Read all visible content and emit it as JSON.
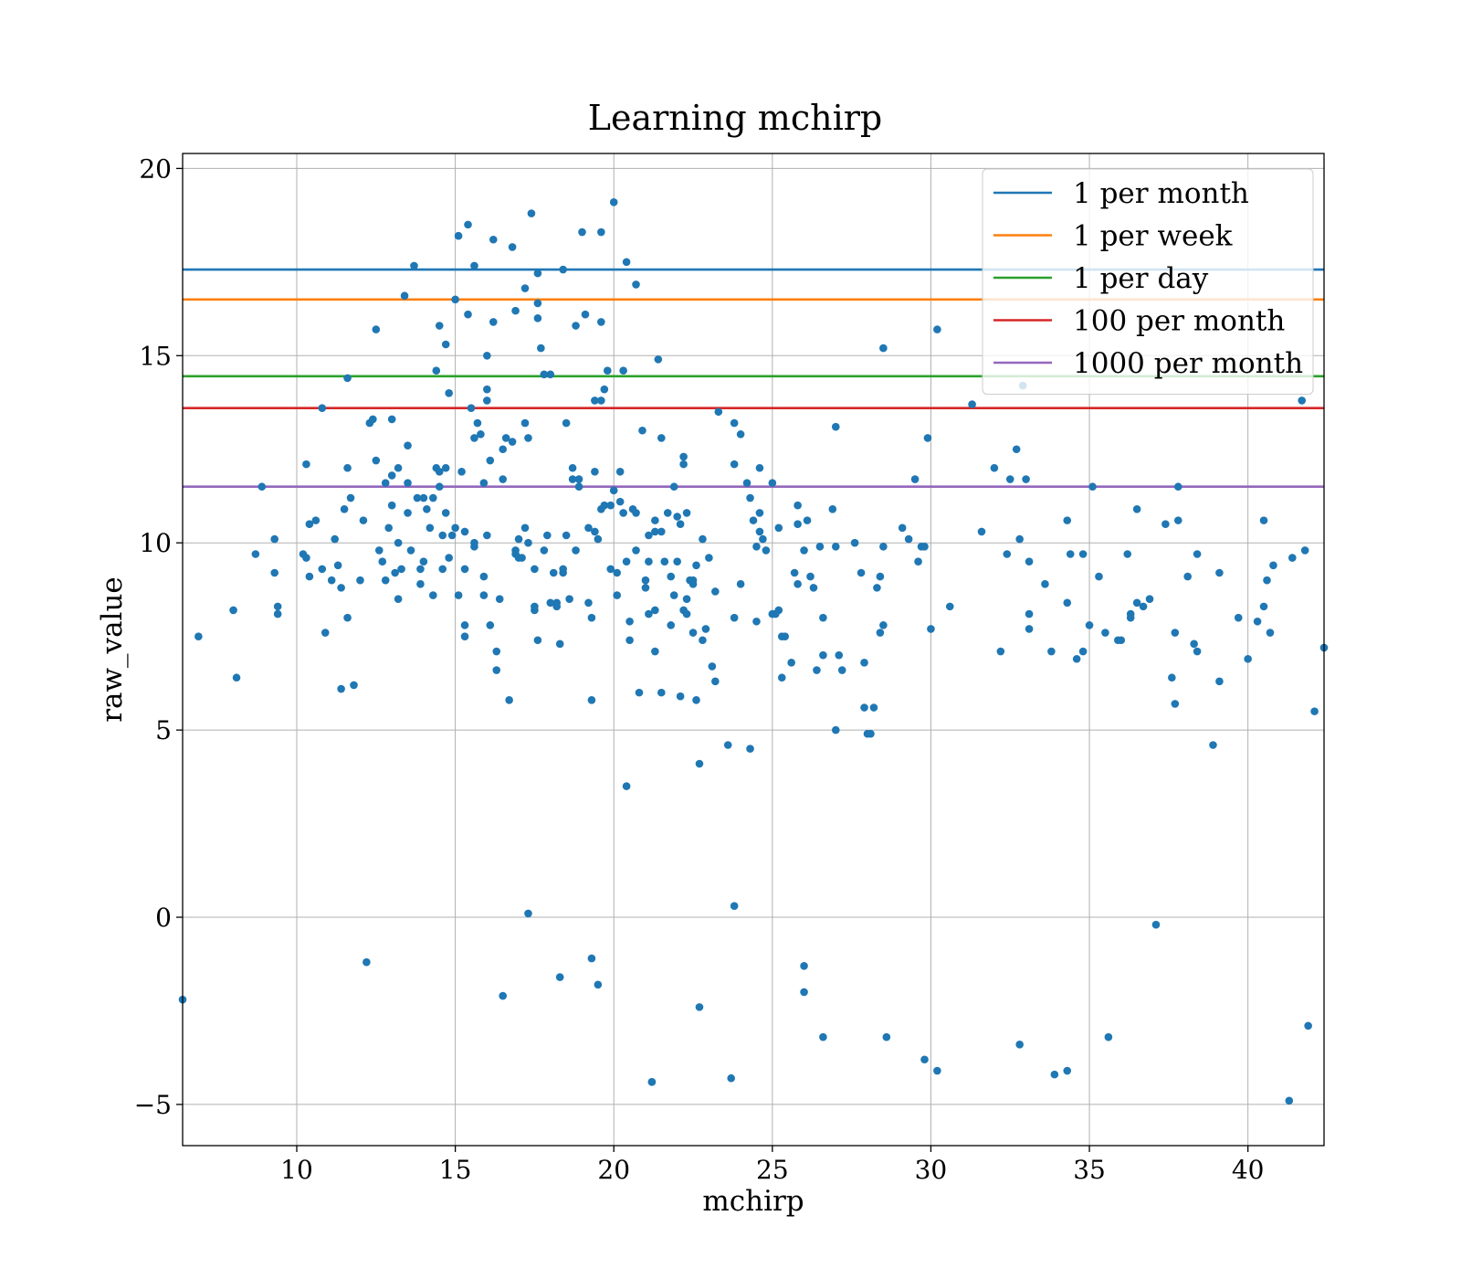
{
  "chart_data": {
    "type": "scatter",
    "title": "Learning mchirp",
    "xlabel": "mchirp",
    "ylabel": "raw_value",
    "xlim": [
      6.4,
      42.4
    ],
    "ylim": [
      -6.1,
      20.4
    ],
    "xticks": [
      10,
      15,
      20,
      25,
      30,
      35,
      40
    ],
    "yticks": [
      -5,
      0,
      5,
      10,
      15,
      20
    ],
    "xtick_labels": [
      "10",
      "15",
      "20",
      "25",
      "30",
      "35",
      "40"
    ],
    "ytick_labels": [
      "−5",
      "0",
      "5",
      "10",
      "15",
      "20"
    ],
    "grid": true,
    "legend_position": "top-right",
    "point_color": "#1f77b4",
    "hlines": [
      {
        "name": "1 per month",
        "y": 17.3,
        "color": "#1f77b4"
      },
      {
        "name": "1 per week",
        "y": 16.5,
        "color": "#ff7f0e"
      },
      {
        "name": "1 per day",
        "y": 14.45,
        "color": "#2ca02c"
      },
      {
        "name": "100 per month",
        "y": 13.6,
        "color": "#d62728"
      },
      {
        "name": "1000 per month",
        "y": 11.5,
        "color": "#9467bd"
      }
    ],
    "points": [
      [
        6.4,
        -2.2
      ],
      [
        6.9,
        7.5
      ],
      [
        8.0,
        8.2
      ],
      [
        8.1,
        6.4
      ],
      [
        8.7,
        9.7
      ],
      [
        8.9,
        11.5
      ],
      [
        9.3,
        10.1
      ],
      [
        9.3,
        9.2
      ],
      [
        9.4,
        8.1
      ],
      [
        9.4,
        8.3
      ],
      [
        10.2,
        9.7
      ],
      [
        10.3,
        9.6
      ],
      [
        10.3,
        12.1
      ],
      [
        10.4,
        10.5
      ],
      [
        10.4,
        9.1
      ],
      [
        10.6,
        10.6
      ],
      [
        10.8,
        13.6
      ],
      [
        10.8,
        9.3
      ],
      [
        10.9,
        7.6
      ],
      [
        11.1,
        9.0
      ],
      [
        11.2,
        10.1
      ],
      [
        11.3,
        9.4
      ],
      [
        11.4,
        8.8
      ],
      [
        11.4,
        6.1
      ],
      [
        11.5,
        10.9
      ],
      [
        11.6,
        12.0
      ],
      [
        11.6,
        8.0
      ],
      [
        11.6,
        14.4
      ],
      [
        11.7,
        11.2
      ],
      [
        11.8,
        6.2
      ],
      [
        12.0,
        9.0
      ],
      [
        12.1,
        10.6
      ],
      [
        12.2,
        -1.2
      ],
      [
        12.3,
        13.2
      ],
      [
        12.4,
        13.3
      ],
      [
        12.5,
        15.7
      ],
      [
        12.5,
        12.2
      ],
      [
        12.6,
        9.8
      ],
      [
        12.7,
        9.5
      ],
      [
        12.8,
        11.6
      ],
      [
        12.8,
        9.0
      ],
      [
        12.9,
        10.4
      ],
      [
        13.0,
        11.8
      ],
      [
        13.0,
        11.0
      ],
      [
        13.0,
        13.3
      ],
      [
        13.1,
        9.2
      ],
      [
        13.2,
        12.0
      ],
      [
        13.2,
        10.0
      ],
      [
        13.2,
        8.5
      ],
      [
        13.3,
        9.3
      ],
      [
        13.4,
        16.6
      ],
      [
        13.5,
        12.6
      ],
      [
        13.5,
        11.6
      ],
      [
        13.5,
        10.8
      ],
      [
        13.6,
        9.8
      ],
      [
        13.7,
        17.4
      ],
      [
        13.8,
        11.2
      ],
      [
        13.9,
        9.3
      ],
      [
        13.9,
        8.9
      ],
      [
        14.0,
        11.2
      ],
      [
        14.0,
        9.5
      ],
      [
        14.1,
        10.9
      ],
      [
        14.2,
        10.4
      ],
      [
        14.3,
        11.2
      ],
      [
        14.3,
        8.6
      ],
      [
        14.4,
        14.6
      ],
      [
        14.4,
        12.0
      ],
      [
        14.5,
        15.8
      ],
      [
        14.5,
        11.9
      ],
      [
        14.5,
        11.5
      ],
      [
        14.6,
        10.2
      ],
      [
        14.6,
        9.3
      ],
      [
        14.7,
        12.0
      ],
      [
        14.7,
        10.8
      ],
      [
        14.7,
        15.3
      ],
      [
        14.8,
        14.0
      ],
      [
        14.8,
        9.6
      ],
      [
        14.9,
        10.2
      ],
      [
        15.0,
        16.5
      ],
      [
        15.0,
        10.4
      ],
      [
        15.1,
        18.2
      ],
      [
        15.1,
        8.6
      ],
      [
        15.2,
        11.9
      ],
      [
        15.3,
        10.3
      ],
      [
        15.3,
        9.3
      ],
      [
        15.3,
        7.8
      ],
      [
        15.3,
        7.5
      ],
      [
        15.4,
        18.5
      ],
      [
        15.4,
        16.1
      ],
      [
        15.5,
        13.6
      ],
      [
        15.6,
        17.4
      ],
      [
        15.6,
        9.9
      ],
      [
        15.6,
        10.0
      ],
      [
        15.6,
        12.8
      ],
      [
        15.7,
        13.2
      ],
      [
        15.8,
        12.9
      ],
      [
        15.9,
        11.6
      ],
      [
        15.9,
        9.1
      ],
      [
        15.9,
        8.6
      ],
      [
        16.0,
        10.2
      ],
      [
        16.0,
        13.8
      ],
      [
        16.0,
        14.1
      ],
      [
        16.0,
        15.0
      ],
      [
        16.1,
        12.2
      ],
      [
        16.1,
        7.8
      ],
      [
        16.2,
        15.9
      ],
      [
        16.2,
        18.1
      ],
      [
        16.3,
        7.1
      ],
      [
        16.3,
        6.6
      ],
      [
        16.4,
        8.5
      ],
      [
        16.5,
        11.7
      ],
      [
        16.5,
        12.5
      ],
      [
        16.5,
        -2.1
      ],
      [
        16.6,
        12.8
      ],
      [
        16.7,
        5.8
      ],
      [
        16.8,
        12.7
      ],
      [
        16.8,
        17.9
      ],
      [
        16.9,
        16.2
      ],
      [
        16.9,
        9.8
      ],
      [
        16.9,
        9.7
      ],
      [
        17.0,
        9.6
      ],
      [
        17.0,
        10.1
      ],
      [
        17.1,
        9.6
      ],
      [
        17.2,
        16.8
      ],
      [
        17.2,
        13.2
      ],
      [
        17.2,
        10.4
      ],
      [
        17.3,
        12.8
      ],
      [
        17.3,
        10.0
      ],
      [
        17.3,
        0.1
      ],
      [
        17.4,
        18.8
      ],
      [
        17.5,
        9.3
      ],
      [
        17.5,
        8.3
      ],
      [
        17.5,
        8.2
      ],
      [
        17.6,
        17.2
      ],
      [
        17.6,
        16.0
      ],
      [
        17.6,
        16.4
      ],
      [
        17.6,
        7.4
      ],
      [
        17.7,
        15.2
      ],
      [
        17.8,
        14.5
      ],
      [
        17.8,
        9.8
      ],
      [
        17.9,
        10.2
      ],
      [
        18.0,
        14.5
      ],
      [
        18.0,
        8.4
      ],
      [
        18.1,
        9.2
      ],
      [
        18.2,
        8.4
      ],
      [
        18.2,
        8.3
      ],
      [
        18.3,
        7.3
      ],
      [
        18.3,
        -1.6
      ],
      [
        18.4,
        17.3
      ],
      [
        18.4,
        9.2
      ],
      [
        18.4,
        9.3
      ],
      [
        18.5,
        13.2
      ],
      [
        18.5,
        10.2
      ],
      [
        18.6,
        8.5
      ],
      [
        18.7,
        12.0
      ],
      [
        18.7,
        11.7
      ],
      [
        18.8,
        15.8
      ],
      [
        18.8,
        9.8
      ],
      [
        18.9,
        11.7
      ],
      [
        18.9,
        11.5
      ],
      [
        19.0,
        18.3
      ],
      [
        19.1,
        16.1
      ],
      [
        19.2,
        10.4
      ],
      [
        19.2,
        8.4
      ],
      [
        19.3,
        8.0
      ],
      [
        19.3,
        5.8
      ],
      [
        19.3,
        -1.1
      ],
      [
        19.4,
        13.8
      ],
      [
        19.4,
        11.9
      ],
      [
        19.4,
        10.3
      ],
      [
        19.5,
        10.1
      ],
      [
        19.5,
        -1.8
      ],
      [
        19.6,
        18.3
      ],
      [
        19.6,
        15.9
      ],
      [
        19.6,
        13.8
      ],
      [
        19.6,
        10.9
      ],
      [
        19.7,
        14.1
      ],
      [
        19.7,
        11.0
      ],
      [
        19.8,
        14.6
      ],
      [
        19.9,
        11.0
      ],
      [
        19.9,
        9.3
      ],
      [
        20.0,
        19.1
      ],
      [
        20.0,
        11.4
      ],
      [
        20.1,
        9.2
      ],
      [
        20.1,
        8.6
      ],
      [
        20.2,
        11.9
      ],
      [
        20.2,
        11.1
      ],
      [
        20.3,
        14.6
      ],
      [
        20.3,
        10.8
      ],
      [
        20.4,
        17.5
      ],
      [
        20.4,
        3.5
      ],
      [
        20.4,
        9.5
      ],
      [
        20.5,
        7.9
      ],
      [
        20.5,
        7.4
      ],
      [
        20.6,
        10.9
      ],
      [
        20.7,
        16.9
      ],
      [
        20.7,
        10.8
      ],
      [
        20.7,
        9.8
      ],
      [
        20.8,
        6.0
      ],
      [
        20.9,
        13.0
      ],
      [
        21.0,
        8.8
      ],
      [
        21.0,
        9.0
      ],
      [
        21.1,
        10.2
      ],
      [
        21.1,
        9.5
      ],
      [
        21.1,
        8.1
      ],
      [
        21.2,
        -4.4
      ],
      [
        21.2,
        -4.4
      ],
      [
        21.3,
        10.6
      ],
      [
        21.3,
        10.3
      ],
      [
        21.3,
        8.2
      ],
      [
        21.3,
        7.1
      ],
      [
        21.4,
        14.9
      ],
      [
        21.5,
        12.8
      ],
      [
        21.5,
        10.3
      ],
      [
        21.5,
        6.0
      ],
      [
        21.6,
        9.5
      ],
      [
        21.7,
        10.8
      ],
      [
        21.8,
        9.1
      ],
      [
        21.8,
        7.8
      ],
      [
        21.9,
        11.5
      ],
      [
        21.9,
        8.6
      ],
      [
        22.0,
        10.7
      ],
      [
        22.0,
        9.5
      ],
      [
        22.1,
        10.5
      ],
      [
        22.1,
        5.9
      ],
      [
        22.2,
        12.3
      ],
      [
        22.2,
        12.1
      ],
      [
        22.2,
        8.2
      ],
      [
        22.3,
        10.8
      ],
      [
        22.3,
        8.5
      ],
      [
        22.3,
        8.1
      ],
      [
        22.4,
        9.0
      ],
      [
        22.5,
        9.0
      ],
      [
        22.5,
        8.9
      ],
      [
        22.5,
        7.6
      ],
      [
        22.6,
        9.4
      ],
      [
        22.6,
        5.8
      ],
      [
        22.7,
        4.1
      ],
      [
        22.7,
        -2.4
      ],
      [
        22.8,
        10.1
      ],
      [
        22.8,
        7.4
      ],
      [
        22.9,
        7.7
      ],
      [
        23.0,
        9.6
      ],
      [
        23.1,
        6.7
      ],
      [
        23.2,
        8.7
      ],
      [
        23.2,
        6.3
      ],
      [
        23.3,
        13.5
      ],
      [
        23.6,
        4.6
      ],
      [
        23.7,
        -4.3
      ],
      [
        23.8,
        13.2
      ],
      [
        23.8,
        12.1
      ],
      [
        23.8,
        8.0
      ],
      [
        23.8,
        0.3
      ],
      [
        24.0,
        12.9
      ],
      [
        24.0,
        8.9
      ],
      [
        24.2,
        11.6
      ],
      [
        24.3,
        4.5
      ],
      [
        24.3,
        11.2
      ],
      [
        24.4,
        10.6
      ],
      [
        24.5,
        7.9
      ],
      [
        24.5,
        9.9
      ],
      [
        24.6,
        12.0
      ],
      [
        24.6,
        10.8
      ],
      [
        24.6,
        10.3
      ],
      [
        24.7,
        10.1
      ],
      [
        24.8,
        9.8
      ],
      [
        25.0,
        11.6
      ],
      [
        25.0,
        8.1
      ],
      [
        25.1,
        8.1
      ],
      [
        25.2,
        10.4
      ],
      [
        25.2,
        8.2
      ],
      [
        25.3,
        7.5
      ],
      [
        25.3,
        6.4
      ],
      [
        25.4,
        7.5
      ],
      [
        25.6,
        6.8
      ],
      [
        25.7,
        9.2
      ],
      [
        25.8,
        11.0
      ],
      [
        25.8,
        10.5
      ],
      [
        25.8,
        8.9
      ],
      [
        26.0,
        9.8
      ],
      [
        26.0,
        -1.3
      ],
      [
        26.0,
        -2.0
      ],
      [
        26.1,
        10.6
      ],
      [
        26.2,
        9.1
      ],
      [
        26.3,
        8.8
      ],
      [
        26.4,
        6.6
      ],
      [
        26.5,
        9.9
      ],
      [
        26.6,
        8.0
      ],
      [
        26.6,
        7.0
      ],
      [
        26.6,
        -3.2
      ],
      [
        26.9,
        10.9
      ],
      [
        27.0,
        9.9
      ],
      [
        27.0,
        13.1
      ],
      [
        27.0,
        5.0
      ],
      [
        27.1,
        7.0
      ],
      [
        27.2,
        6.6
      ],
      [
        27.6,
        10.0
      ],
      [
        27.8,
        9.2
      ],
      [
        27.9,
        6.8
      ],
      [
        27.9,
        5.6
      ],
      [
        28.0,
        4.9
      ],
      [
        28.1,
        4.9
      ],
      [
        28.2,
        5.6
      ],
      [
        28.3,
        8.8
      ],
      [
        28.4,
        9.1
      ],
      [
        28.4,
        7.6
      ],
      [
        28.5,
        7.8
      ],
      [
        28.5,
        15.2
      ],
      [
        28.5,
        9.9
      ],
      [
        28.6,
        -3.2
      ],
      [
        29.1,
        10.4
      ],
      [
        29.3,
        10.1
      ],
      [
        29.5,
        11.7
      ],
      [
        29.6,
        9.5
      ],
      [
        29.7,
        9.9
      ],
      [
        29.8,
        9.9
      ],
      [
        29.8,
        -3.8
      ],
      [
        29.9,
        12.8
      ],
      [
        30.0,
        7.7
      ],
      [
        30.2,
        15.7
      ],
      [
        30.2,
        -4.1
      ],
      [
        30.6,
        8.3
      ],
      [
        31.3,
        13.7
      ],
      [
        31.6,
        10.3
      ],
      [
        32.0,
        12.0
      ],
      [
        32.2,
        7.1
      ],
      [
        32.4,
        9.7
      ],
      [
        32.5,
        11.7
      ],
      [
        32.7,
        12.5
      ],
      [
        32.8,
        10.1
      ],
      [
        32.8,
        -3.4
      ],
      [
        32.9,
        14.2
      ],
      [
        33.0,
        11.7
      ],
      [
        33.1,
        9.5
      ],
      [
        33.1,
        8.1
      ],
      [
        33.1,
        7.7
      ],
      [
        33.6,
        8.9
      ],
      [
        33.8,
        7.1
      ],
      [
        33.9,
        -4.2
      ],
      [
        34.3,
        8.4
      ],
      [
        34.3,
        -4.1
      ],
      [
        34.3,
        10.6
      ],
      [
        34.4,
        9.7
      ],
      [
        34.6,
        6.9
      ],
      [
        34.8,
        7.1
      ],
      [
        34.8,
        9.7
      ],
      [
        35.0,
        7.8
      ],
      [
        35.1,
        11.5
      ],
      [
        35.3,
        9.1
      ],
      [
        35.5,
        7.6
      ],
      [
        35.6,
        -3.2
      ],
      [
        35.9,
        7.4
      ],
      [
        36.0,
        7.4
      ],
      [
        36.2,
        9.7
      ],
      [
        36.3,
        8.0
      ],
      [
        36.3,
        8.1
      ],
      [
        36.5,
        10.9
      ],
      [
        36.5,
        8.4
      ],
      [
        36.7,
        8.3
      ],
      [
        36.9,
        8.5
      ],
      [
        37.1,
        -0.2
      ],
      [
        37.4,
        10.5
      ],
      [
        37.6,
        6.4
      ],
      [
        37.7,
        5.7
      ],
      [
        37.7,
        7.6
      ],
      [
        37.8,
        11.5
      ],
      [
        37.8,
        10.6
      ],
      [
        38.1,
        9.1
      ],
      [
        38.3,
        7.3
      ],
      [
        38.4,
        7.1
      ],
      [
        38.4,
        9.7
      ],
      [
        38.9,
        4.6
      ],
      [
        39.1,
        6.3
      ],
      [
        39.1,
        9.2
      ],
      [
        39.7,
        8.0
      ],
      [
        40.3,
        7.9
      ],
      [
        40.5,
        10.6
      ],
      [
        40.6,
        9.0
      ],
      [
        40.8,
        9.4
      ],
      [
        41.3,
        -4.9
      ],
      [
        41.4,
        9.6
      ],
      [
        41.9,
        -2.9
      ],
      [
        42.1,
        5.5
      ],
      [
        42.4,
        7.2
      ],
      [
        40.0,
        6.9
      ],
      [
        40.5,
        8.3
      ],
      [
        40.7,
        7.6
      ],
      [
        41.7,
        13.8
      ],
      [
        41.8,
        9.8
      ]
    ]
  }
}
